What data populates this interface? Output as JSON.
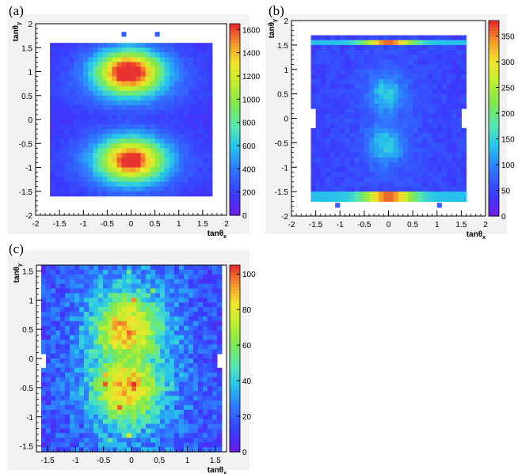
{
  "chart_data": [
    {
      "type": "heatmap",
      "panel_label": "(a)",
      "xlabel": "tanθ",
      "xlabel_sub": "x",
      "ylabel": "tanθ",
      "ylabel_sub": "y",
      "xlim": [
        -2,
        2
      ],
      "ylim": [
        -2,
        2
      ],
      "x_ticks": [
        "-2",
        "-1.5",
        "-1",
        "-0.5",
        "0",
        "0.5",
        "1",
        "1.5",
        "2"
      ],
      "y_ticks": [
        "-2",
        "-1.5",
        "-1",
        "-0.5",
        "0",
        "0.5",
        "1",
        "1.5",
        "2"
      ],
      "colorbar_range": [
        0,
        1650
      ],
      "colorbar_ticks": [
        "0",
        "200",
        "400",
        "600",
        "800",
        "1000",
        "1200",
        "1400",
        "1600"
      ],
      "description": "Two elliptical lobes centred near (0, 1) and (0, -0.8) peaking around 1600 counts"
    },
    {
      "type": "heatmap",
      "panel_label": "(b)",
      "xlabel": "tanθ",
      "xlabel_sub": "x",
      "ylabel": "tanθ",
      "ylabel_sub": "y",
      "xlim": [
        -2,
        2
      ],
      "ylim": [
        -2,
        2
      ],
      "x_ticks": [
        "-2",
        "-1.5",
        "-1",
        "-0.5",
        "0",
        "0.5",
        "1",
        "1.5",
        "2"
      ],
      "y_ticks": [
        "-2",
        "-1.5",
        "-1",
        "-0.5",
        "0",
        "0.5",
        "1",
        "1.5",
        "2"
      ],
      "colorbar_range": [
        0,
        380
      ],
      "colorbar_ticks": [
        "0",
        "50",
        "100",
        "150",
        "200",
        "250",
        "300",
        "350"
      ],
      "description": "Narrow bright bands at tanθy ≈ ±1.6 (peak ~370), weaker blobs near (0, 0.5) and (0, -0.5)"
    },
    {
      "type": "heatmap",
      "panel_label": "(c)",
      "xlabel": "tanθ",
      "xlabel_sub": "x",
      "ylabel": "tanθ",
      "ylabel_sub": "y",
      "xlim": [
        -1.7,
        1.7
      ],
      "ylim": [
        -1.6,
        1.6
      ],
      "x_ticks": [
        "-1.5",
        "-1",
        "-0.5",
        "0",
        "0.5",
        "1",
        "1.5"
      ],
      "y_ticks": [
        "-1.5",
        "-1",
        "-0.5",
        "0",
        "0.5",
        "1",
        "1.5"
      ],
      "colorbar_range": [
        0,
        105
      ],
      "colorbar_ticks": [
        "0",
        "20",
        "40",
        "60",
        "80",
        "100"
      ],
      "description": "Noisy distribution with two maxima near (-0.1, 0.5) and (-0.1, -0.5) peaking around 100 counts"
    }
  ]
}
